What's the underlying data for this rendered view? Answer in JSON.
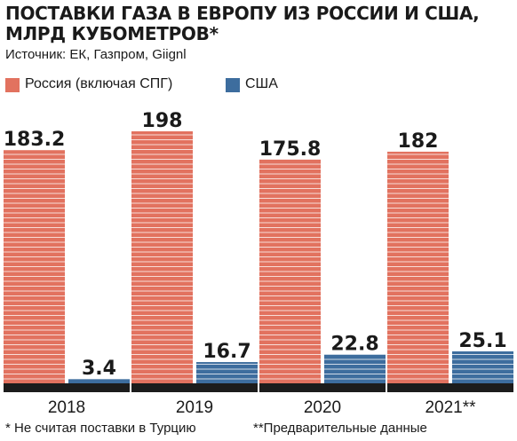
{
  "title_line1": "ПОСТАВКИ ГАЗА В ЕВРОПУ ИЗ РОССИИ И США,",
  "title_line2": "МЛРД КУБОМЕТРОВ*",
  "source": "Источник: ЕК, Газпром, Giignl",
  "footnote_1": "* Не считая поставки в Турцию",
  "footnote_2": "**Предварительные данные",
  "colors": {
    "russia": "#e2725f",
    "usa": "#3d6d9e",
    "baseline": "#1c1c1c",
    "stripe": "#ffffff"
  },
  "chart_data": {
    "type": "bar",
    "categories": [
      "2018",
      "2019",
      "2020",
      "2021**"
    ],
    "series": [
      {
        "name": "Россия (включая СПГ)",
        "values": [
          183.2,
          198,
          175.8,
          182
        ],
        "labels": [
          "183.2",
          "198",
          "175.8",
          "182"
        ]
      },
      {
        "name": "США",
        "values": [
          3.4,
          16.7,
          22.8,
          25.1
        ],
        "labels": [
          "3.4",
          "16.7",
          "22.8",
          "25.1"
        ]
      }
    ],
    "ylim": [
      0,
      198
    ],
    "grid": false,
    "legend": "top-left"
  }
}
